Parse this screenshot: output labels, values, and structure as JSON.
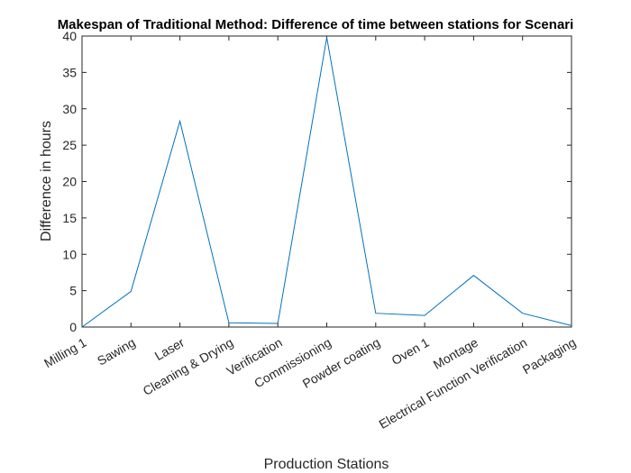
{
  "chart_data": {
    "type": "line",
    "title": "Makespan of Traditional Method: Difference of time between stations for Scenari",
    "xlabel": "Production Stations",
    "ylabel": "Difference in hours",
    "categories": [
      "Milling 1",
      "Sawing",
      "Laser",
      "Cleaning & Drying",
      "Verification",
      "Commissioning",
      "Powder coating",
      "Oven 1",
      "Montage",
      "Electrical Function Verification",
      "Packaging"
    ],
    "values": [
      0,
      4.9,
      28.3,
      0.6,
      0.5,
      39.8,
      1.9,
      1.6,
      7.1,
      1.9,
      0.2
    ],
    "ylim": [
      0,
      40
    ],
    "yticks": [
      0,
      5,
      10,
      15,
      20,
      25,
      30,
      35,
      40
    ],
    "grid": false,
    "line_color": "#0072BD"
  }
}
